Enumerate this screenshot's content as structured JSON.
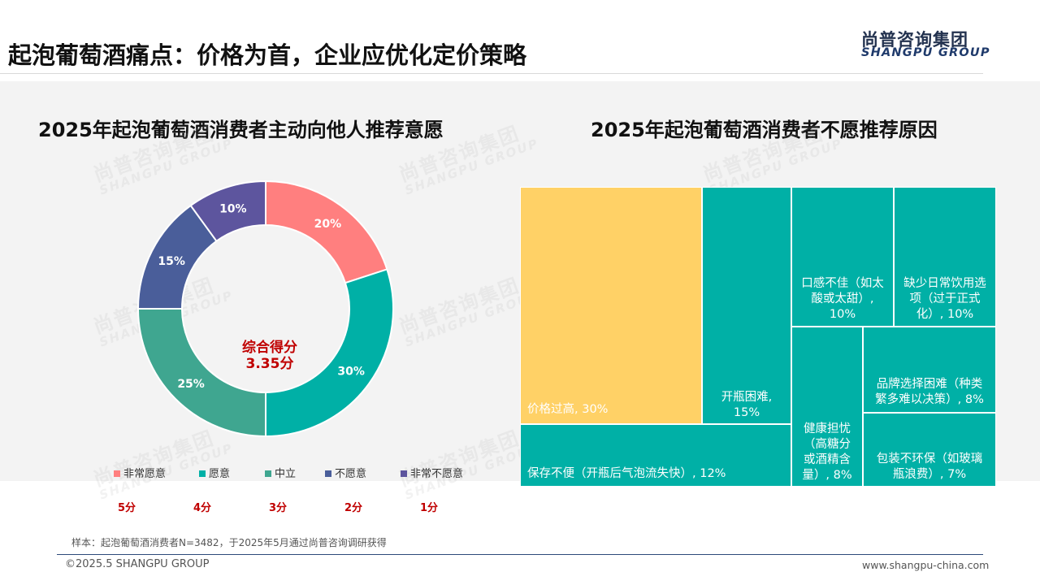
{
  "header": {
    "title": "起泡葡萄酒痛点：价格为首，企业应优化定价策略",
    "logo_cn": "尚普咨询集团",
    "logo_en": "SHANGPU GROUP"
  },
  "watermark": {
    "cn": "尚普咨询集团",
    "en": "SHANGPU GROUP"
  },
  "donut": {
    "title": "2025年起泡葡萄酒消费者主动向他人推荐意愿",
    "center_line1": "综合得分",
    "center_line2": "3.35分"
  },
  "treemap_title": "2025年起泡葡萄酒消费者不愿推荐原因",
  "chart_data": [
    {
      "type": "pie",
      "title": "2025年起泡葡萄酒消费者主动向他人推荐意愿",
      "categories": [
        "非常愿意",
        "愿意",
        "中立",
        "不愿意",
        "非常不愿意"
      ],
      "values": [
        20,
        30,
        25,
        15,
        10
      ],
      "labels": [
        "20%",
        "30%",
        "25%",
        "15%",
        "10%"
      ],
      "scores": [
        "5分",
        "4分",
        "3分",
        "2分",
        "1分"
      ],
      "colors": [
        "#ff7f7f",
        "#00b0a6",
        "#3fa690",
        "#4a5e9a",
        "#5d559e"
      ],
      "legend": "bottom"
    },
    {
      "type": "treemap",
      "title": "2025年起泡葡萄酒消费者不愿推荐原因",
      "items": [
        {
          "label": "价格过高, 30%",
          "value": 30,
          "color": "#ffd166"
        },
        {
          "label": "开瓶困难, 15%",
          "value": 15,
          "color": "#00b0a6"
        },
        {
          "label": "口感不佳（如太酸或太甜）, 10%",
          "value": 10,
          "color": "#00b0a6"
        },
        {
          "label": "缺少日常饮用选项（过于正式化）, 10%",
          "value": 10,
          "color": "#00b0a6"
        },
        {
          "label": "品牌选择困难（种类繁多难以决策）, 8%",
          "value": 8,
          "color": "#00b0a6"
        },
        {
          "label": "健康担忧（高糖分或酒精含量）, 8%",
          "value": 8,
          "color": "#00b0a6"
        },
        {
          "label": "包装不环保（如玻璃瓶浪费）, 7%",
          "value": 7,
          "color": "#00b0a6"
        },
        {
          "label": "保存不便（开瓶后气泡流失快）, 12%",
          "value": 12,
          "color": "#00b0a6"
        }
      ]
    }
  ],
  "treemap_lines": {
    "price": [
      "价格过高, 30%"
    ],
    "open": [
      "开瓶困难,",
      "15%"
    ],
    "taste": [
      "口感不佳（如太",
      "酸或太甜）,",
      "10%"
    ],
    "daily": [
      "缺少日常饮用选",
      "项（过于正式",
      "化）, 10%"
    ],
    "brand": [
      "品牌选择困难（种类",
      "繁多难以决策）, 8%"
    ],
    "health": [
      "健康担忧",
      "（高糖分",
      "或酒精含",
      "量）, 8%"
    ],
    "pack": [
      "包装不环保（如玻璃",
      "瓶浪费）, 7%"
    ],
    "store": [
      "保存不便（开瓶后气泡流失快）, 12%"
    ]
  },
  "footer": {
    "note": "样本：起泡葡萄酒消费者N=3482，于2025年5月通过尚普咨询调研获得",
    "copyright": "©2025.5 SHANGPU GROUP",
    "website": "www.shangpu-china.com"
  }
}
